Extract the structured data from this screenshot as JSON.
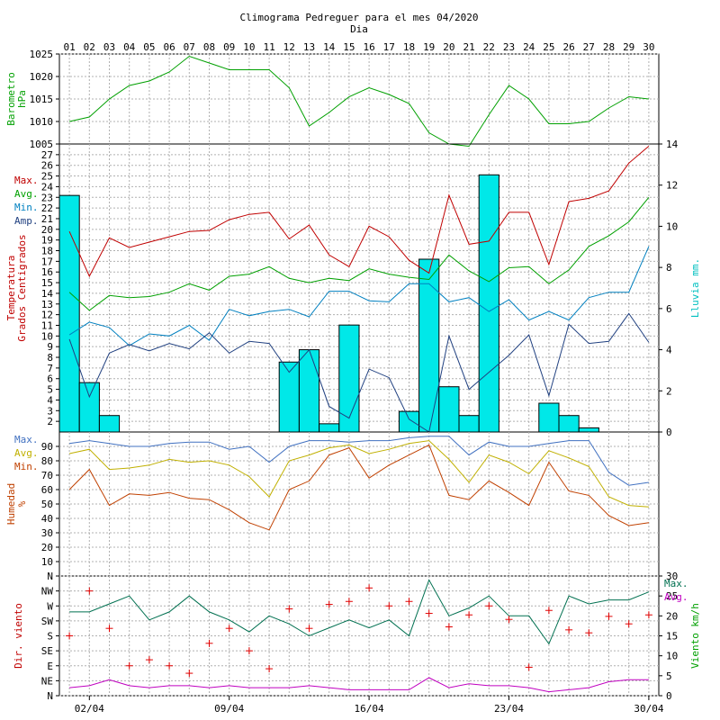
{
  "chart_data": {
    "type": "line",
    "title": "Climograma Pedreguer para el mes 04/2020",
    "xlabel": "Dia",
    "days": [
      "01",
      "02",
      "03",
      "04",
      "05",
      "06",
      "07",
      "08",
      "09",
      "10",
      "11",
      "12",
      "13",
      "14",
      "15",
      "16",
      "17",
      "18",
      "19",
      "20",
      "21",
      "22",
      "23",
      "24",
      "25",
      "26",
      "27",
      "28",
      "29",
      "30"
    ],
    "date_labels": [
      {
        "day": 2,
        "label": "02/04"
      },
      {
        "day": 9,
        "label": "09/04"
      },
      {
        "day": 16,
        "label": "16/04"
      },
      {
        "day": 23,
        "label": "23/04"
      },
      {
        "day": 30,
        "label": "30/04"
      }
    ],
    "panels": [
      {
        "id": "barometer",
        "ylabel": [
          "Barometro",
          "hPa"
        ],
        "ylabel_color": "#00a000",
        "ylim": [
          1005,
          1025
        ],
        "yticks": [
          1005,
          1010,
          1015,
          1020,
          1025
        ],
        "series": [
          {
            "name": "",
            "color": "#00a000",
            "values": [
              1010,
              1011,
              1015,
              1018,
              1019,
              1021,
              1024.5,
              1023,
              1021.5,
              1021.5,
              1021.5,
              1017.5,
              1009,
              1012,
              1015.5,
              1017.5,
              1016,
              1014,
              1007.5,
              1005,
              1004.5,
              1011.5,
              1018,
              1015,
              1009.5,
              1009.5,
              1010,
              1013,
              1015.5,
              1015
            ]
          }
        ]
      },
      {
        "id": "temperature",
        "ylabel": [
          "Temperatura",
          "Grados Centigrados"
        ],
        "ylabel_color": "#c00000",
        "ylim": [
          1,
          28
        ],
        "yticks": [
          2,
          3,
          4,
          5,
          6,
          7,
          8,
          9,
          10,
          11,
          12,
          13,
          14,
          15,
          16,
          17,
          18,
          19,
          20,
          21,
          22,
          23,
          24,
          25,
          26,
          27
        ],
        "y2label": "Lluvia mm.",
        "y2label_color": "#00c0c0",
        "y2lim": [
          0,
          14
        ],
        "y2ticks": [
          0,
          2,
          4,
          6,
          8,
          10,
          12,
          14
        ],
        "legend": [
          {
            "label": "Max.",
            "color": "#c00000"
          },
          {
            "label": "Avg.",
            "color": "#00a000"
          },
          {
            "label": "Min.",
            "color": "#0080c0"
          },
          {
            "label": "Amp.",
            "color": "#204080"
          }
        ],
        "rain": {
          "name": "Lluvia mm.",
          "color": "#00e8e8",
          "values": [
            11.5,
            2.4,
            0.8,
            0,
            0,
            0,
            0,
            0,
            0,
            0,
            0,
            3.4,
            4,
            0.4,
            5.2,
            0,
            0,
            1,
            8.4,
            2.2,
            0.8,
            12.5,
            0,
            0,
            1.4,
            0.8,
            0.2,
            0,
            0,
            0
          ]
        },
        "series": [
          {
            "name": "Max.",
            "color": "#c00000",
            "values": [
              19.8,
              15.6,
              19.2,
              18.3,
              18.8,
              19.3,
              19.8,
              19.9,
              20.9,
              21.4,
              21.6,
              19.1,
              20.4,
              17.6,
              16.5,
              20.3,
              19.3,
              17.1,
              15.9,
              23.2,
              18.6,
              18.9,
              21.6,
              21.6,
              16.7,
              22.6,
              22.9,
              23.6,
              26.2,
              27.8
            ]
          },
          {
            "name": "Avg.",
            "color": "#00a000",
            "values": [
              14.1,
              12.4,
              13.8,
              13.6,
              13.7,
              14.1,
              14.9,
              14.3,
              15.6,
              15.8,
              16.5,
              15.4,
              15,
              15.4,
              15.2,
              16.3,
              15.8,
              15.5,
              15.3,
              17.6,
              16.1,
              15.1,
              16.4,
              16.5,
              14.9,
              16.2,
              18.4,
              19.4,
              20.7,
              23
            ]
          },
          {
            "name": "Min.",
            "color": "#0080c0",
            "values": [
              10.1,
              11.3,
              10.8,
              9.1,
              10.2,
              10,
              11,
              9.6,
              12.5,
              11.9,
              12.3,
              12.5,
              11.8,
              14.2,
              14.2,
              13.3,
              13.2,
              14.9,
              14.9,
              13.2,
              13.6,
              12.3,
              13.4,
              11.5,
              12.3,
              11.5,
              13.6,
              14.1,
              14.1,
              18.4
            ]
          },
          {
            "name": "Amp.",
            "color": "#204080",
            "values": [
              9.7,
              4.3,
              8.4,
              9.2,
              8.6,
              9.3,
              8.8,
              10.3,
              8.4,
              9.5,
              9.3,
              6.6,
              8.7,
              3.4,
              2.3,
              6.9,
              6.1,
              2.2,
              1,
              10,
              5,
              6.6,
              8.2,
              10.1,
              4.4,
              11.1,
              9.3,
              9.5,
              12.1,
              9.4
            ]
          }
        ]
      },
      {
        "id": "humidity",
        "ylabel": [
          "Humedad",
          "%"
        ],
        "ylabel_color": "#c04000",
        "ylim": [
          0,
          100
        ],
        "yticks": [
          10,
          20,
          30,
          40,
          50,
          60,
          70,
          80,
          90
        ],
        "legend": [
          {
            "label": "Max.",
            "color": "#4070c0"
          },
          {
            "label": "Avg.",
            "color": "#c0b000"
          },
          {
            "label": "Min.",
            "color": "#c04000"
          }
        ],
        "series": [
          {
            "name": "Max.",
            "color": "#4070c0",
            "values": [
              92,
              94,
              92,
              90,
              90,
              92,
              93,
              93,
              88,
              90,
              79,
              90,
              94,
              94,
              93,
              94,
              94,
              96,
              97,
              97,
              84,
              93,
              90,
              90,
              92,
              94,
              94,
              72,
              63,
              65
            ]
          },
          {
            "name": "Avg.",
            "color": "#c0b000",
            "values": [
              85,
              88,
              74,
              75,
              77,
              81,
              79,
              80,
              77,
              69,
              55,
              80,
              84,
              89,
              91,
              85,
              88,
              92,
              94,
              81,
              65,
              84,
              79,
              71,
              87,
              82,
              76,
              55,
              49,
              48
            ]
          },
          {
            "name": "Min.",
            "color": "#c04000",
            "values": [
              60,
              74,
              49,
              57,
              56,
              58,
              54,
              53,
              46,
              37,
              32,
              60,
              66,
              84,
              89,
              68,
              77,
              84,
              91,
              56,
              53,
              66,
              58,
              49,
              79,
              59,
              56,
              42,
              35,
              37
            ]
          }
        ]
      },
      {
        "id": "wind",
        "ylabel": [
          "Dir. viento"
        ],
        "ylabel_color": "#c00000",
        "directions": [
          "N",
          "NE",
          "E",
          "SE",
          "S",
          "SW",
          "W",
          "NW",
          "N"
        ],
        "ylim": [
          0,
          8
        ],
        "y2label": "Viento km/h",
        "y2label_color": "#00a000",
        "y2lim": [
          0,
          30
        ],
        "y2ticks": [
          0,
          5,
          10,
          15,
          20,
          25,
          30
        ],
        "legend": [
          {
            "label": "Max.",
            "color": "#007050"
          },
          {
            "label": "Avg.",
            "color": "#c000c0"
          }
        ],
        "direction": {
          "name": "Dir.",
          "color": "#e00000",
          "marker": "+",
          "values": [
            4,
            7,
            4.5,
            2,
            2.4,
            2,
            1.5,
            3.5,
            4.5,
            3,
            1.8,
            5.8,
            4.5,
            6.1,
            6.3,
            7.2,
            6,
            6.3,
            5.5,
            4.6,
            5.4,
            6,
            5.1,
            1.9,
            5.7,
            4.4,
            4.2,
            5.3,
            4.8,
            5.4
          ]
        },
        "series": [
          {
            "name": "Max.",
            "color": "#007050",
            "values": [
              21,
              21,
              23,
              25,
              19,
              21,
              25,
              21,
              19,
              16,
              20,
              18,
              15,
              17,
              19,
              17,
              19,
              15,
              29,
              20,
              22,
              25,
              20,
              20,
              13,
              25,
              23,
              24,
              24,
              26
            ]
          },
          {
            "name": "Avg.",
            "color": "#c000c0",
            "values": [
              2,
              2.5,
              4,
              2.5,
              2,
              2.5,
              2.5,
              2,
              2.5,
              2,
              2,
              2,
              2.5,
              2,
              1.5,
              1.5,
              1.5,
              1.5,
              4.5,
              2,
              3,
              2.5,
              2.5,
              2,
              1,
              1.5,
              2,
              3.5,
              4,
              4
            ]
          }
        ]
      }
    ]
  }
}
